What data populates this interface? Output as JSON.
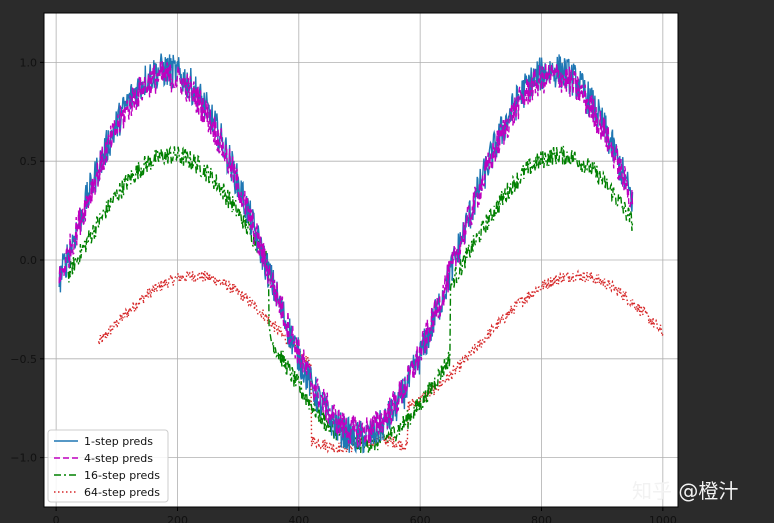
{
  "watermark": "知乎 @橙汁",
  "chart_data": {
    "type": "line",
    "title": "",
    "xlabel": "",
    "ylabel": "",
    "xlim": [
      -20,
      1025
    ],
    "ylim": [
      -1.25,
      1.25
    ],
    "xticks": [
      0,
      200,
      400,
      600,
      800,
      1000
    ],
    "yticks": [
      -1.0,
      -0.5,
      0.0,
      0.5,
      1.0
    ],
    "xtick_labels": [
      "0",
      "200",
      "400",
      "600",
      "800",
      "1000"
    ],
    "ytick_labels": [
      "−1.0",
      "−0.5",
      "0.0",
      "0.5",
      "1.0"
    ],
    "grid": true,
    "legend_position": "lower-left",
    "series": [
      {
        "name": "1-step preds",
        "color": "#1f77b4",
        "style": "solid",
        "x_start": 5,
        "x_end": 950,
        "step": 1,
        "amplitude": 0.93,
        "noise": 0.09
      },
      {
        "name": "4-step preds",
        "color": "#bf00bf",
        "style": "dashed",
        "x_start": 5,
        "x_end": 950,
        "step": 1,
        "amplitude": 0.9,
        "noise": 0.08
      },
      {
        "name": "16-step preds",
        "color": "#008000",
        "style": "dashdot",
        "x_start": 20,
        "x_end": 950,
        "step": 1,
        "amplitude": 0.55,
        "noise": 0.05
      },
      {
        "name": "64-step preds",
        "color": "#d62728",
        "style": "dotted",
        "x_start": 70,
        "x_end": 1000,
        "step": 1,
        "amplitude": 0.12,
        "noise": 0.03
      }
    ]
  }
}
